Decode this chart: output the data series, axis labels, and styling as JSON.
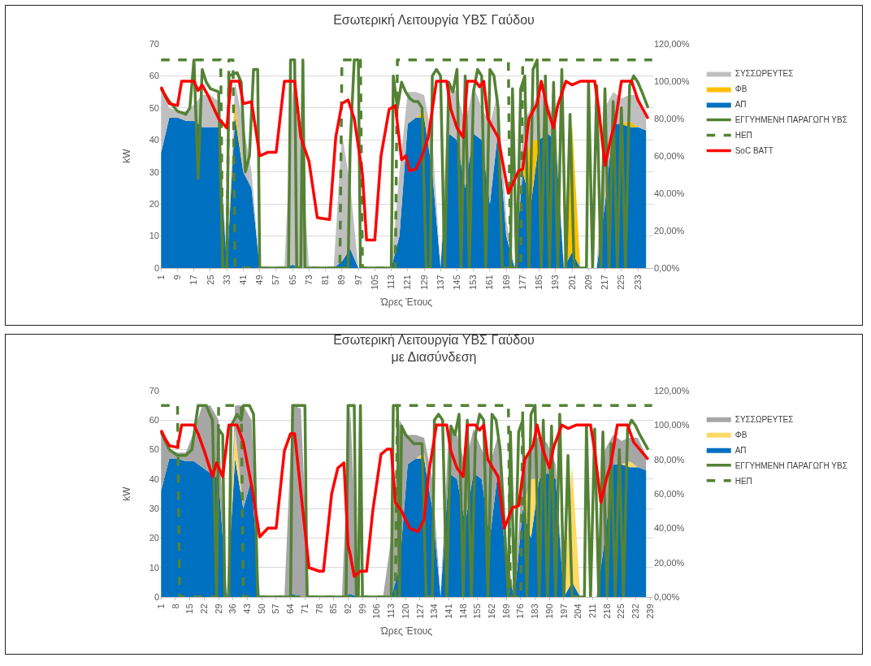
{
  "chart_data": [
    {
      "type": "area",
      "title": "Εσωτερική Λειτουργία ΥΒΣ Γαύδου",
      "xlabel": "Ώρες Έτους",
      "ylabel": "kW",
      "stacked": true,
      "grid": "y",
      "legend": "right",
      "xlim": [
        0.5,
        240.5
      ],
      "xticks": [
        1,
        9,
        17,
        25,
        33,
        41,
        49,
        57,
        65,
        73,
        81,
        89,
        97,
        105,
        113,
        121,
        129,
        137,
        145,
        153,
        161,
        169,
        177,
        185,
        193,
        201,
        209,
        217,
        225,
        233
      ],
      "ylim": [
        0,
        70
      ],
      "yticks": [
        0,
        10,
        20,
        30,
        40,
        50,
        60,
        70
      ],
      "y2lim": [
        0,
        120
      ],
      "y2ticks": [
        {
          "value": 0,
          "label": "0,00%"
        },
        {
          "value": 20,
          "label": "20,00%"
        },
        {
          "value": 40,
          "label": "40,00%"
        },
        {
          "value": 60,
          "label": "60,00%"
        },
        {
          "value": 80,
          "label": "80,00%"
        },
        {
          "value": 100,
          "label": "100,00%"
        },
        {
          "value": 120,
          "label": "120,00%"
        }
      ],
      "x": [
        1,
        5,
        9,
        13,
        17,
        21,
        25,
        29,
        33,
        37,
        41,
        45,
        49,
        53,
        57,
        61,
        65,
        69,
        73,
        77,
        81,
        85,
        89,
        93,
        97,
        101,
        105,
        109,
        113,
        117,
        121,
        125,
        129,
        133,
        137,
        141,
        145,
        149,
        153,
        157,
        161,
        165,
        169,
        173,
        177,
        181,
        185,
        189,
        193,
        197,
        201,
        205,
        209,
        213,
        217,
        221,
        225,
        229,
        233,
        237
      ],
      "series": [
        {
          "name": "ΑΠ",
          "color": "#0070c0",
          "values": [
            36,
            47,
            47,
            46,
            46,
            44,
            44,
            44,
            0,
            47,
            30,
            25,
            0,
            0,
            0,
            0,
            1,
            0,
            0,
            0,
            0,
            0,
            2,
            6,
            0,
            0,
            0,
            0,
            0,
            10,
            45,
            47,
            47,
            30,
            0,
            42,
            40,
            25,
            42,
            40,
            20,
            43,
            10,
            0,
            30,
            20,
            40,
            42,
            40,
            0,
            5,
            0,
            0,
            0,
            20,
            45,
            45,
            44,
            44,
            43
          ]
        },
        {
          "name": "ΦΒ",
          "color": "#ffc000",
          "values": [
            0,
            0,
            0,
            0,
            0,
            0,
            0,
            0,
            0,
            5,
            0,
            0,
            0,
            0,
            0,
            0,
            0,
            0,
            0,
            0,
            0,
            0,
            0,
            0,
            0,
            0,
            0,
            0,
            0,
            0,
            0,
            0,
            2,
            0,
            0,
            0,
            0,
            0,
            0,
            0,
            0,
            0,
            0,
            0,
            0,
            20,
            0,
            0,
            0,
            0,
            40,
            0,
            0,
            0,
            0,
            0,
            0,
            2,
            0,
            0
          ]
        },
        {
          "name": "ΣΥΣΣΩΡΕΥΤΕΣ",
          "color": "#bfbfbf",
          "values": [
            20,
            3,
            2,
            3,
            5,
            10,
            10,
            8,
            0,
            6,
            15,
            5,
            0,
            0,
            0,
            0,
            55,
            40,
            0,
            0,
            0,
            0,
            40,
            20,
            0,
            0,
            0,
            0,
            0,
            20,
            10,
            8,
            5,
            10,
            0,
            15,
            15,
            20,
            15,
            10,
            25,
            12,
            5,
            0,
            15,
            10,
            15,
            10,
            5,
            0,
            0,
            0,
            0,
            0,
            30,
            10,
            8,
            8,
            10,
            5
          ]
        },
        {
          "name": "ΕΓΓΥΗΜΕΝΗ ΠΑΡΑΓΩΓΗ ΥΒΣ",
          "type": "line",
          "color": "#548235",
          "line_style": "solid",
          "x": [
            1,
            5,
            9,
            13,
            15,
            17,
            19,
            21,
            23,
            25,
            29,
            31,
            33,
            34,
            38,
            40,
            42,
            44,
            46,
            48,
            49,
            63,
            64,
            66,
            67,
            69,
            70,
            71,
            92,
            93,
            95,
            97,
            98,
            113,
            114,
            116,
            118,
            120,
            122,
            124,
            126,
            128,
            130,
            132,
            133,
            135,
            137,
            139,
            141,
            143,
            145,
            147,
            149,
            151,
            153,
            155,
            157,
            159,
            161,
            163,
            165,
            167,
            171,
            172,
            174,
            176,
            178,
            180,
            182,
            184,
            186,
            188,
            190,
            192,
            194,
            196,
            198,
            200,
            202,
            208,
            209,
            211,
            213,
            215,
            217,
            219,
            221,
            223,
            225,
            227,
            229,
            231,
            233,
            235,
            238
          ],
          "values": [
            56,
            52,
            49,
            48,
            50,
            65,
            28,
            62,
            58,
            56,
            55,
            0,
            0,
            60,
            61,
            58,
            30,
            35,
            62,
            62,
            0,
            0,
            65,
            65,
            0,
            0,
            65,
            0,
            0,
            38,
            65,
            65,
            0,
            0,
            60,
            50,
            58,
            55,
            53,
            52,
            52,
            50,
            0,
            0,
            60,
            62,
            60,
            0,
            58,
            55,
            62,
            0,
            60,
            0,
            55,
            62,
            60,
            0,
            62,
            60,
            50,
            0,
            0,
            56,
            0,
            56,
            60,
            0,
            62,
            65,
            0,
            60,
            0,
            58,
            0,
            62,
            0,
            48,
            0,
            0,
            58,
            0,
            57,
            0,
            56,
            0,
            52,
            0,
            50,
            0,
            57,
            60,
            58,
            55,
            50
          ]
        },
        {
          "name": "ΗΕΠ",
          "type": "line",
          "color": "#548235",
          "line_style": "dashed",
          "x": [
            1,
            30,
            31,
            33,
            34,
            36,
            37,
            88,
            89,
            98,
            99,
            115,
            116,
            170,
            171,
            176,
            177,
            240
          ],
          "values": [
            65,
            65,
            0,
            0,
            65,
            65,
            0,
            0,
            65,
            65,
            0,
            0,
            65,
            65,
            0,
            0,
            65,
            65
          ]
        },
        {
          "name": "SoC BATT",
          "type": "line",
          "color": "#ff0000",
          "line_style": "solid",
          "axis": "y2",
          "x": [
            1,
            3,
            5,
            9,
            11,
            17,
            19,
            21,
            24,
            29,
            33,
            35,
            39,
            41,
            45,
            49,
            53,
            57,
            61,
            66,
            69,
            73,
            77,
            83,
            86,
            89,
            92,
            95,
            99,
            101,
            105,
            108,
            112,
            115,
            118,
            120,
            122,
            125,
            128,
            131,
            135,
            140,
            142,
            145,
            148,
            150,
            154,
            156,
            158,
            160,
            165,
            170,
            175,
            177,
            180,
            184,
            186,
            189,
            192,
            194,
            198,
            201,
            205,
            212,
            214,
            217,
            220,
            222,
            225,
            230,
            233,
            238
          ],
          "values": [
            97,
            92,
            88,
            87,
            100,
            100,
            95,
            98,
            92,
            80,
            75,
            100,
            100,
            88,
            89,
            60,
            62,
            62,
            100,
            100,
            70,
            57,
            27,
            26,
            70,
            88,
            90,
            80,
            50,
            15,
            15,
            60,
            85,
            87,
            58,
            60,
            52,
            53,
            60,
            70,
            100,
            100,
            85,
            75,
            70,
            100,
            100,
            97,
            100,
            80,
            70,
            40,
            52,
            53,
            80,
            88,
            100,
            85,
            75,
            87,
            100,
            98,
            100,
            100,
            85,
            55,
            70,
            78,
            100,
            100,
            90,
            80
          ]
        }
      ]
    },
    {
      "type": "area",
      "title": "Εσωτερική Λειτουργία ΥΒΣ Γαύδου\nμε Διασύνδεση",
      "xlabel": "Ώρες Έτους",
      "ylabel": "kW",
      "stacked": true,
      "grid": "y",
      "legend": "right",
      "xlim": [
        0.5,
        240.5
      ],
      "xticks": [
        1,
        8,
        15,
        22,
        29,
        36,
        43,
        50,
        57,
        64,
        71,
        78,
        85,
        92,
        99,
        106,
        113,
        120,
        127,
        134,
        141,
        148,
        155,
        162,
        169,
        176,
        183,
        190,
        197,
        204,
        211,
        218,
        225,
        232,
        239
      ],
      "ylim": [
        0,
        70
      ],
      "yticks": [
        0,
        10,
        20,
        30,
        40,
        50,
        60,
        70
      ],
      "y2lim": [
        0,
        120
      ],
      "y2ticks": [
        {
          "value": 0,
          "label": "0,00%"
        },
        {
          "value": 20,
          "label": "20,00%"
        },
        {
          "value": 40,
          "label": "40,00%"
        },
        {
          "value": 60,
          "label": "60,00%"
        },
        {
          "value": 80,
          "label": "80,00%"
        },
        {
          "value": 100,
          "label": "100,00%"
        },
        {
          "value": 120,
          "label": "120,00%"
        }
      ],
      "x": [
        1,
        5,
        9,
        13,
        17,
        21,
        25,
        29,
        33,
        37,
        41,
        45,
        49,
        53,
        57,
        61,
        65,
        69,
        73,
        77,
        81,
        85,
        89,
        93,
        97,
        101,
        105,
        109,
        113,
        117,
        121,
        125,
        129,
        133,
        137,
        141,
        145,
        149,
        153,
        157,
        161,
        165,
        169,
        173,
        177,
        181,
        185,
        189,
        193,
        197,
        201,
        205,
        209,
        213,
        217,
        221,
        225,
        229,
        233,
        237
      ],
      "series": [
        {
          "name": "ΑΠ",
          "color": "#0070c0",
          "values": [
            36,
            47,
            47,
            46,
            46,
            44,
            42,
            40,
            0,
            47,
            30,
            40,
            0,
            0,
            0,
            0,
            1,
            0,
            0,
            0,
            0,
            0,
            0,
            1,
            0,
            0,
            0,
            0,
            0,
            10,
            45,
            47,
            47,
            30,
            0,
            42,
            40,
            25,
            42,
            40,
            20,
            43,
            10,
            0,
            30,
            20,
            40,
            42,
            40,
            0,
            5,
            0,
            0,
            0,
            20,
            45,
            45,
            44,
            44,
            43
          ]
        },
        {
          "name": "ΦΒ",
          "color": "#ffd966",
          "values": [
            0,
            0,
            0,
            0,
            0,
            0,
            0,
            0,
            0,
            10,
            0,
            0,
            0,
            0,
            0,
            0,
            0,
            0,
            0,
            0,
            0,
            0,
            0,
            0,
            0,
            0,
            0,
            0,
            0,
            0,
            0,
            0,
            2,
            0,
            0,
            0,
            0,
            0,
            0,
            0,
            0,
            0,
            0,
            0,
            0,
            20,
            0,
            0,
            0,
            0,
            40,
            0,
            0,
            0,
            0,
            0,
            0,
            2,
            0,
            0
          ]
        },
        {
          "name": "ΣΥΣΣΩΡΕΥΤΕΣ",
          "color": "#a6a6a6",
          "values": [
            20,
            3,
            2,
            3,
            10,
            21,
            23,
            20,
            0,
            8,
            35,
            20,
            0,
            0,
            0,
            0,
            64,
            64,
            0,
            0,
            0,
            0,
            0,
            64,
            0,
            0,
            0,
            0,
            20,
            50,
            10,
            8,
            5,
            10,
            0,
            15,
            15,
            20,
            15,
            10,
            25,
            12,
            5,
            0,
            15,
            10,
            15,
            10,
            5,
            0,
            0,
            0,
            0,
            0,
            30,
            10,
            8,
            8,
            10,
            5
          ]
        },
        {
          "name": "ΕΓΓΥΗΜΕΝΗ ΠΑΡΑΓΩΓΗ ΥΒΣ",
          "type": "line",
          "color": "#548235",
          "line_style": "solid",
          "x": [
            1,
            5,
            9,
            13,
            16,
            19,
            23,
            26,
            28,
            29,
            31,
            32,
            34,
            35,
            38,
            40,
            41,
            44,
            46,
            48,
            64,
            65,
            71,
            72,
            91,
            92,
            95,
            96,
            97,
            98,
            99,
            113,
            114,
            116,
            117,
            118,
            120,
            124,
            128,
            130,
            133,
            134,
            136,
            138,
            140,
            142,
            144,
            146,
            148,
            150,
            152,
            154,
            156,
            158,
            160,
            162,
            164,
            166,
            170,
            171,
            173,
            175,
            177,
            179,
            181,
            183,
            185,
            187,
            189,
            191,
            193,
            195,
            197,
            199,
            201,
            207,
            208,
            210,
            212,
            214,
            216,
            218,
            220,
            222,
            224,
            226,
            228,
            230,
            232,
            234,
            238
          ],
          "values": [
            56,
            50,
            48,
            48,
            50,
            65,
            65,
            60,
            0,
            57,
            55,
            0,
            0,
            58,
            62,
            60,
            65,
            65,
            62,
            0,
            0,
            65,
            65,
            0,
            0,
            65,
            65,
            0,
            0,
            65,
            0,
            0,
            65,
            65,
            0,
            58,
            55,
            52,
            52,
            0,
            0,
            60,
            62,
            60,
            0,
            58,
            55,
            62,
            0,
            60,
            0,
            55,
            62,
            60,
            0,
            62,
            60,
            50,
            0,
            56,
            0,
            56,
            60,
            0,
            62,
            65,
            0,
            60,
            0,
            58,
            0,
            62,
            0,
            48,
            0,
            0,
            58,
            0,
            57,
            0,
            56,
            0,
            52,
            0,
            50,
            0,
            57,
            60,
            58,
            55,
            50
          ]
        },
        {
          "name": "ΗΕΠ",
          "type": "line",
          "color": "#548235",
          "line_style": "dashed",
          "x": [
            1,
            9,
            10,
            28,
            29,
            40,
            41,
            115,
            116,
            170,
            171,
            176,
            177,
            240
          ],
          "values": [
            65,
            65,
            0,
            0,
            65,
            65,
            0,
            0,
            65,
            65,
            0,
            0,
            65,
            65
          ]
        },
        {
          "type": "line",
          "color": "#ff0000",
          "line_style": "solid",
          "axis": "y2",
          "x": [
            1,
            3,
            5,
            9,
            11,
            17,
            19,
            22,
            26,
            28,
            31,
            34,
            38,
            41,
            45,
            49,
            53,
            57,
            61,
            64,
            66,
            70,
            73,
            78,
            80,
            84,
            87,
            90,
            92,
            93,
            95,
            98,
            101,
            104,
            108,
            111,
            113,
            115,
            118,
            122,
            126,
            129,
            131,
            135,
            140,
            142,
            145,
            148,
            150,
            154,
            156,
            158,
            160,
            165,
            168,
            172,
            175,
            178,
            182,
            184,
            187,
            190,
            192,
            196,
            199,
            203,
            210,
            212,
            215,
            218,
            220,
            223,
            228,
            231,
            238
          ],
          "values": [
            97,
            92,
            88,
            87,
            100,
            100,
            95,
            85,
            70,
            78,
            70,
            100,
            100,
            90,
            65,
            35,
            40,
            40,
            85,
            95,
            95,
            50,
            17,
            15,
            15,
            60,
            75,
            78,
            30,
            25,
            12,
            15,
            15,
            50,
            83,
            86,
            86,
            55,
            50,
            40,
            38,
            45,
            70,
            100,
            100,
            85,
            75,
            70,
            100,
            100,
            97,
            100,
            80,
            70,
            40,
            52,
            53,
            80,
            88,
            100,
            85,
            75,
            87,
            100,
            98,
            100,
            100,
            85,
            55,
            70,
            78,
            100,
            100,
            90,
            80
          ]
        }
      ]
    }
  ]
}
